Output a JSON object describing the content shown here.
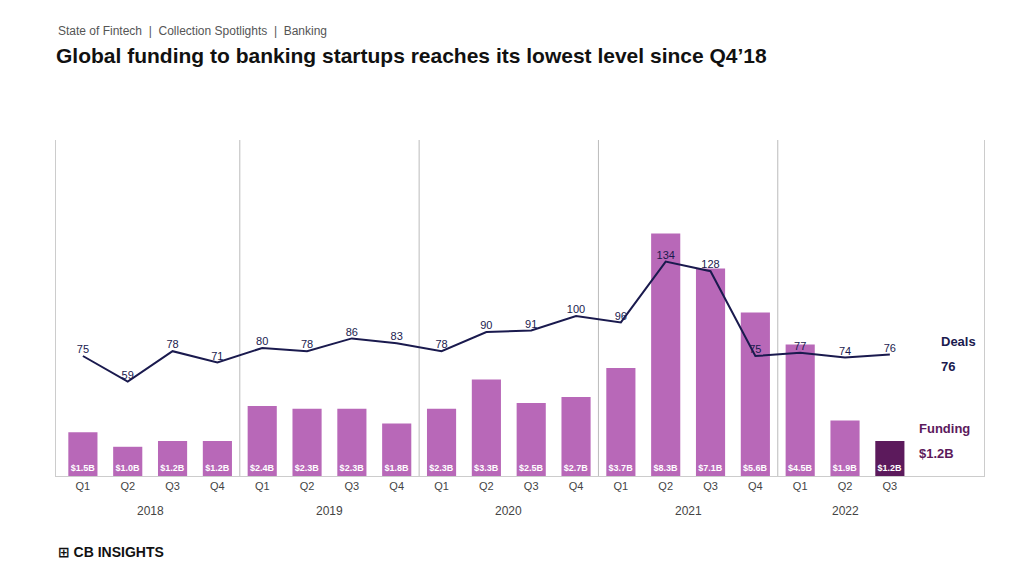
{
  "chart_data": {
    "type": "bar",
    "title": "Global funding to banking startups reaches its lowest level since Q4’18",
    "subtitle": "State of Fintech  |  Collection Spotlights  |  Banking",
    "categories": [
      "Q1",
      "Q2",
      "Q3",
      "Q4",
      "Q1",
      "Q2",
      "Q3",
      "Q4",
      "Q1",
      "Q2",
      "Q3",
      "Q4",
      "Q1",
      "Q2",
      "Q3",
      "Q4",
      "Q1",
      "Q2",
      "Q3"
    ],
    "series": [
      {
        "name": "Funding",
        "type": "bar",
        "colors": [
          "#b868b8",
          "#b868b8",
          "#b868b8",
          "#b868b8",
          "#b868b8",
          "#b868b8",
          "#b868b8",
          "#b868b8",
          "#b868b8",
          "#b868b8",
          "#b868b8",
          "#b868b8",
          "#b868b8",
          "#b868b8",
          "#b868b8",
          "#b868b8",
          "#b868b8",
          "#b868b8",
          "#5c1a5c"
        ],
        "values": [
          1.5,
          1.0,
          1.2,
          1.2,
          2.4,
          2.3,
          2.3,
          1.8,
          2.3,
          3.3,
          2.5,
          2.7,
          3.7,
          8.3,
          7.1,
          5.6,
          4.5,
          1.9,
          1.2
        ],
        "value_labels": [
          "$1.5B",
          "$1.0B",
          "$1.2B",
          "$1.2B",
          "$2.4B",
          "$2.3B",
          "$2.3B",
          "$1.8B",
          "$2.3B",
          "$3.3B",
          "$2.5B",
          "$2.7B",
          "$3.7B",
          "$8.3B",
          "$7.1B",
          "$5.6B",
          "$4.5B",
          "$1.9B",
          "$1.2B"
        ],
        "data_labels": true
      },
      {
        "name": "Deals",
        "type": "line",
        "axis": "y2",
        "color": "#1a1a4e",
        "values": [
          75,
          59,
          78,
          71,
          80,
          78,
          86,
          83,
          78,
          90,
          91,
          100,
          96,
          134,
          128,
          75,
          77,
          74,
          76
        ],
        "data_labels": true
      }
    ],
    "ylim": [
      0,
      11.5
    ],
    "y2lim": [
      0,
      210
    ],
    "tick_labels": "x",
    "grid": false,
    "annotations": [
      "2018",
      "2019",
      "2020",
      "2021",
      "2022"
    ],
    "source": "⊞ CB INSIGHTS"
  }
}
